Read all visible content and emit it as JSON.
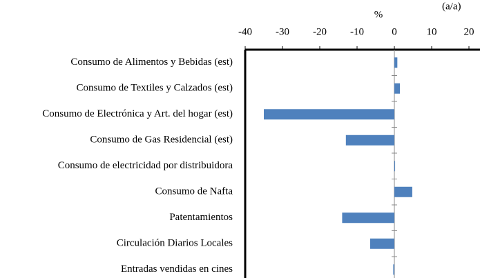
{
  "chart_data": {
    "type": "barh",
    "subtitle": "(a/a)",
    "xlabel": "%",
    "categories": [
      "Consumo de Alimentos y Bebidas (est)",
      "Consumo de Textiles y Calzados (est)",
      "Consumo de Electrónica y Art. del hogar (est)",
      "Consumo de Gas Residencial (est)",
      "Consumo de electricidad por distribuidora",
      "Consumo de Nafta",
      "Patentamientos",
      "Circulación Diarios Locales",
      "Entradas vendidas en cines"
    ],
    "values": [
      0.8,
      1.5,
      -35,
      -13,
      0.2,
      4.8,
      -14,
      -6.5,
      -0.3
    ],
    "color": "#4f81bd",
    "xlim": [
      -40,
      25
    ],
    "xticks": [
      -40,
      -30,
      -20,
      -10,
      0,
      10,
      20
    ],
    "grid": false
  }
}
